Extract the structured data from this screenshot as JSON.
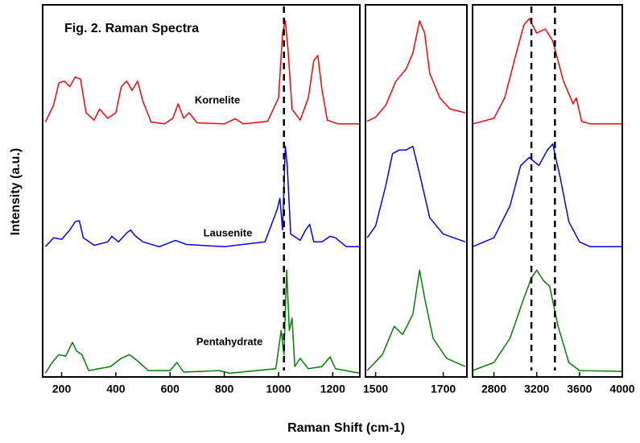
{
  "xlabel": "Raman Shift (cm-1)",
  "ylabel": "Intensity (a.u.)",
  "chart_data": [
    {
      "type": "line",
      "title": "Fig. 2.  Raman Spectra",
      "xlim": [
        130,
        1300
      ],
      "ylim": [
        0,
        100
      ],
      "xticks": [
        200,
        400,
        600,
        800,
        1000,
        1200
      ],
      "vlines": [
        1020
      ],
      "series": [
        {
          "name": "Kornelite",
          "color": "#ff0000",
          "x": [
            140,
            170,
            190,
            210,
            230,
            250,
            270,
            290,
            320,
            340,
            370,
            400,
            420,
            440,
            460,
            480,
            500,
            530,
            580,
            610,
            630,
            650,
            670,
            700,
            800,
            840,
            870,
            960,
            1000,
            1015,
            1025,
            1035,
            1050,
            1080,
            1110,
            1130,
            1145,
            1160,
            1180,
            1220,
            1300
          ],
          "values": [
            68.5,
            73,
            79,
            79.5,
            78,
            80.6,
            80,
            71,
            69,
            72,
            69.5,
            71,
            78,
            79.5,
            77,
            79.5,
            74,
            68.5,
            68,
            69.5,
            73.4,
            69.5,
            71,
            68.3,
            68,
            69.4,
            68,
            68.7,
            75,
            92.4,
            95.7,
            88,
            72,
            69,
            75,
            85,
            86.4,
            77.3,
            69,
            68,
            68
          ]
        },
        {
          "name": "Lausenite",
          "color": "#0000ff",
          "x": [
            140,
            170,
            200,
            230,
            250,
            265,
            280,
            320,
            370,
            385,
            410,
            440,
            455,
            470,
            500,
            560,
            620,
            660,
            800,
            950,
            995,
            1005,
            1015,
            1025,
            1032,
            1045,
            1080,
            1100,
            1115,
            1130,
            1160,
            1190,
            1210,
            1250,
            1300
          ],
          "values": [
            35,
            37.4,
            37,
            39.5,
            41.7,
            42,
            37.4,
            35.4,
            36.3,
            37.8,
            36.3,
            38.7,
            39.5,
            38,
            36.3,
            35,
            36.7,
            35.6,
            35,
            36.3,
            45,
            48,
            39.5,
            62,
            56.8,
            38.4,
            36.7,
            39.5,
            41,
            36.3,
            36.3,
            37.8,
            37.4,
            35,
            35
          ]
        },
        {
          "name": "Pentahydrate",
          "color": "#008000",
          "x": [
            140,
            165,
            190,
            215,
            240,
            255,
            275,
            300,
            380,
            420,
            450,
            480,
            520,
            600,
            625,
            650,
            780,
            820,
            990,
            1010,
            1020,
            1030,
            1040,
            1050,
            1060,
            1080,
            1110,
            1160,
            1190,
            1210,
            1300
          ],
          "values": [
            1,
            3.9,
            6,
            5.6,
            9.3,
            7,
            6,
            1.7,
            2.8,
            5,
            6,
            4.3,
            1.7,
            1.7,
            3.9,
            1.3,
            1.7,
            1,
            2.2,
            12.5,
            6,
            28.7,
            12.5,
            15.8,
            2.8,
            5,
            2.2,
            2.8,
            5.4,
            2.2,
            1
          ]
        }
      ]
    },
    {
      "type": "line",
      "xlim": [
        1470,
        1770
      ],
      "ylim": [
        0,
        100
      ],
      "xticks": [
        1500,
        1700
      ],
      "series": [
        {
          "color": "#ff0000",
          "x": [
            1475,
            1500,
            1530,
            1560,
            1590,
            1610,
            1630,
            1645,
            1660,
            1690,
            1720,
            1765
          ],
          "values": [
            68.7,
            69.8,
            73,
            79.5,
            82.7,
            87,
            95.7,
            92.4,
            81.6,
            75,
            72,
            71
          ]
        },
        {
          "color": "#0000ff",
          "x": [
            1475,
            1500,
            1530,
            1550,
            1570,
            1590,
            1610,
            1630,
            1660,
            1700,
            1765
          ],
          "values": [
            37.4,
            40.6,
            51.4,
            60,
            61,
            61,
            62,
            54.6,
            42.8,
            38.4,
            36.3
          ]
        },
        {
          "color": "#008000",
          "x": [
            1475,
            1520,
            1555,
            1580,
            1610,
            1630,
            1645,
            1670,
            1710,
            1765
          ],
          "values": [
            1.7,
            6,
            13.6,
            11.4,
            16.8,
            28.7,
            21.2,
            10.4,
            5,
            2.8
          ]
        }
      ]
    },
    {
      "type": "line",
      "xlim": [
        2600,
        4000
      ],
      "ylim": [
        0,
        100
      ],
      "xticks": [
        2800,
        3200,
        3600,
        4000
      ],
      "vlines": [
        3150,
        3370
      ],
      "series": [
        {
          "color": "#ff0000",
          "x": [
            2600,
            2800,
            2900,
            3000,
            3080,
            3130,
            3200,
            3280,
            3350,
            3450,
            3540,
            3570,
            3620,
            3700,
            4000
          ],
          "values": [
            68,
            69.5,
            75,
            86,
            94.6,
            96.3,
            92.4,
            93.5,
            90.3,
            79.5,
            73.4,
            75,
            68.7,
            68,
            68
          ]
        },
        {
          "color": "#0000ff",
          "x": [
            2600,
            2800,
            2950,
            3050,
            3130,
            3220,
            3300,
            3350,
            3420,
            3500,
            3600,
            3700,
            4000
          ],
          "values": [
            35,
            37.4,
            46,
            56.8,
            59,
            56.8,
            61,
            62.6,
            53.6,
            41.7,
            36.3,
            35,
            35
          ]
        },
        {
          "color": "#008000",
          "x": [
            2600,
            2800,
            2950,
            3080,
            3150,
            3200,
            3260,
            3320,
            3400,
            3500,
            3600,
            4000
          ],
          "values": [
            1.7,
            3.9,
            10.4,
            21.2,
            26.6,
            28.7,
            26,
            24.4,
            13.6,
            3.9,
            1.7,
            1.5
          ]
        }
      ]
    }
  ]
}
